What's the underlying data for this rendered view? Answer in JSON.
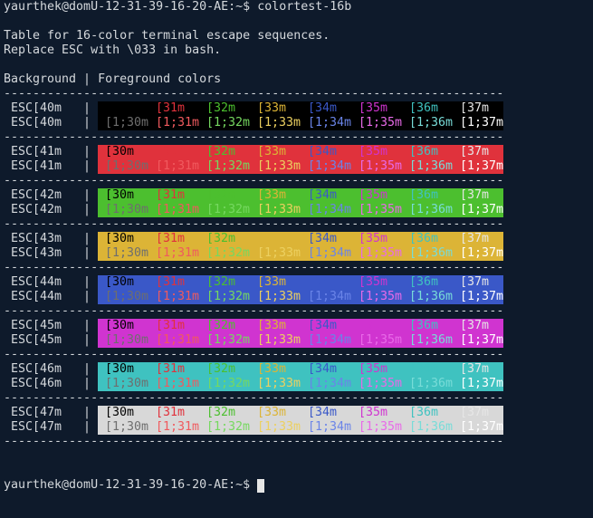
{
  "terminal": {
    "command_line": "yaurthek@domU-12-31-39-16-20-AE:~$ colortest-16b",
    "intro": [
      "Table for 16-color terminal escape sequences.",
      "Replace ESC with \\033 in bash."
    ],
    "header": "Background | Foreground colors",
    "rule": "---------------------------------------------------------------------",
    "separator": "|",
    "normal_codes": [
      "[30m",
      "[31m",
      "[32m",
      "[33m",
      "[34m",
      "[35m",
      "[36m",
      "[37m"
    ],
    "bold_codes": [
      "[1;30m",
      "[1;31m",
      "[1;32m",
      "[1;33m",
      "[1;34m",
      "[1;35m",
      "[1;36m",
      "[1;37m"
    ],
    "normal_colors": [
      "#000000",
      "#e0323c",
      "#4cbf2f",
      "#dcb436",
      "#3a58c8",
      "#d034d0",
      "#3fc2c0",
      "#e6e6e6"
    ],
    "bold_colors": [
      "#6e6e6e",
      "#f05a5e",
      "#76d860",
      "#ecd060",
      "#6a84e8",
      "#e86ae8",
      "#78dcd8",
      "#ffffff"
    ],
    "blocks": [
      {
        "label": "ESC[40m",
        "bg": "#000000"
      },
      {
        "label": "ESC[41m",
        "bg": "#e0323c"
      },
      {
        "label": "ESC[42m",
        "bg": "#4cbf2f"
      },
      {
        "label": "ESC[43m",
        "bg": "#dcb436"
      },
      {
        "label": "ESC[44m",
        "bg": "#3a58c8"
      },
      {
        "label": "ESC[45m",
        "bg": "#d034d0"
      },
      {
        "label": "ESC[46m",
        "bg": "#3fc2c0"
      },
      {
        "label": "ESC[47m",
        "bg": "#d8d8d8"
      }
    ],
    "prompt": "yaurthek@domU-12-31-39-16-20-AE:~$"
  }
}
